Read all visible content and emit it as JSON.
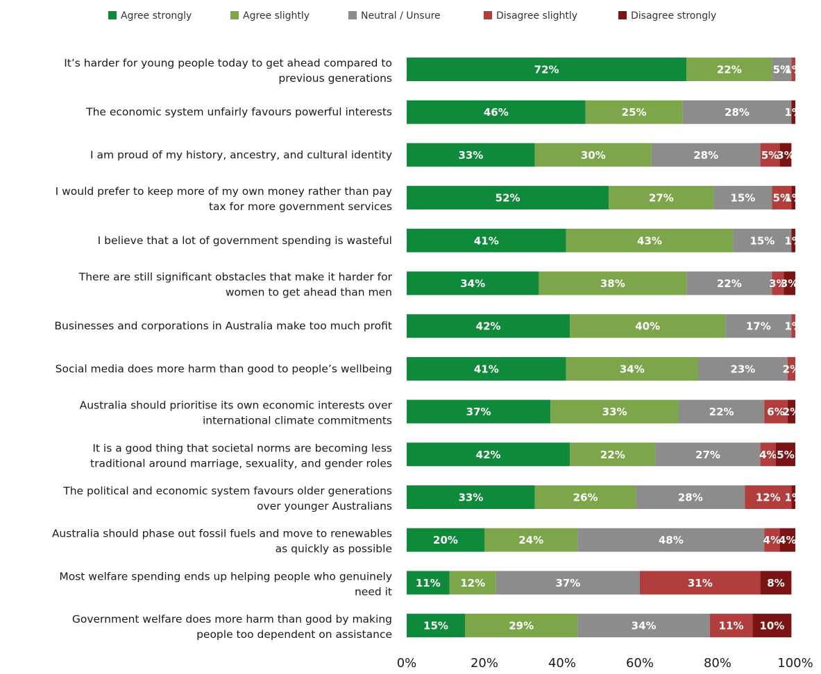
{
  "chart_data": {
    "type": "bar",
    "orientation": "horizontal",
    "stacked": true,
    "legend_position": "top",
    "grid": false,
    "xlim": [
      0,
      100
    ],
    "x_ticks": [
      "0%",
      "20%",
      "40%",
      "60%",
      "80%",
      "100%"
    ],
    "series_colors": [
      "#0e8a3a",
      "#7da64a",
      "#8c8c8c",
      "#b13d3d",
      "#7b1414"
    ],
    "series": [
      {
        "name": "Agree strongly",
        "values": [
          72,
          46,
          33,
          52,
          41,
          34,
          42,
          41,
          37,
          42,
          33,
          20,
          11,
          15
        ]
      },
      {
        "name": "Agree slightly",
        "values": [
          22,
          25,
          30,
          27,
          43,
          38,
          40,
          34,
          33,
          22,
          26,
          24,
          12,
          29
        ]
      },
      {
        "name": "Neutral / Unsure",
        "values": [
          5,
          28,
          28,
          15,
          15,
          22,
          17,
          23,
          22,
          27,
          28,
          48,
          37,
          34
        ]
      },
      {
        "name": "Disagree slightly",
        "values": [
          1,
          0,
          5,
          5,
          0,
          3,
          1,
          2,
          6,
          4,
          12,
          4,
          31,
          11
        ]
      },
      {
        "name": "Disagree strongly",
        "values": [
          0,
          1,
          3,
          1,
          1,
          3,
          0,
          0,
          2,
          5,
          1,
          4,
          8,
          10
        ]
      }
    ],
    "categories": [
      [
        "It’s harder for young people today to get ahead compared to",
        "previous generations"
      ],
      [
        "The economic system unfairly favours powerful interests"
      ],
      [
        "I am proud of my history, ancestry, and cultural identity"
      ],
      [
        "I would prefer to keep more of my own money rather than pay",
        "tax for more government services"
      ],
      [
        "I believe that a lot of government spending is wasteful"
      ],
      [
        "There are still significant obstacles that make it harder for",
        "women to get ahead than men"
      ],
      [
        "Businesses and corporations in Australia make too much profit"
      ],
      [
        "Social media does more harm than good to people’s wellbeing"
      ],
      [
        "Australia should prioritise its own economic interests over",
        "international climate commitments"
      ],
      [
        "It is a good thing that societal norms are becoming less",
        "traditional around marriage, sexuality, and gender roles"
      ],
      [
        "The political and economic system favours older generations",
        "over younger Australians"
      ],
      [
        "Australia should phase out fossil fuels and move to renewables",
        "as quickly as possible"
      ],
      [
        "Most welfare spending ends up helping people who genuinely",
        "need it"
      ],
      [
        "Government welfare does more harm than good by making",
        "people too dependent on assistance"
      ]
    ]
  }
}
